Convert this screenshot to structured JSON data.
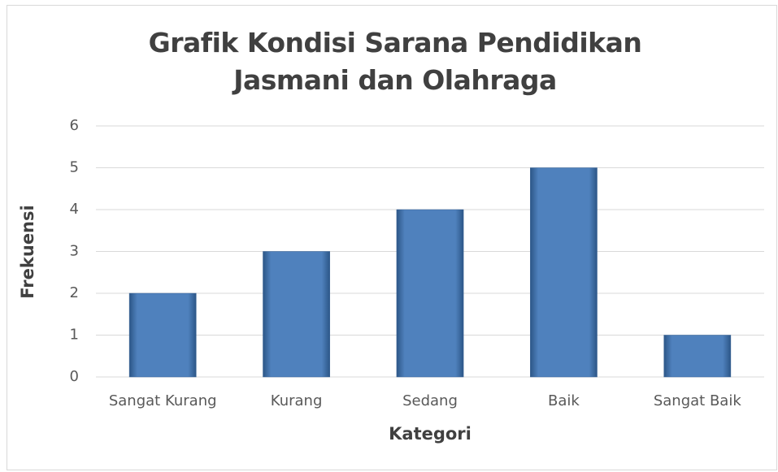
{
  "chart_data": {
    "type": "bar",
    "title": "Grafik Kondisi Sarana Pendidikan Jasmani dan Olahraga",
    "x_label": "Kategori",
    "y_label": "Frekuensi",
    "categories": [
      "Sangat Kurang",
      "Kurang",
      "Sedang",
      "Baik",
      "Sangat Baik"
    ],
    "values": [
      2,
      3,
      4,
      5,
      1
    ],
    "color": "#4f81bd",
    "ylim": [
      0,
      6
    ],
    "yticks": [
      0,
      1,
      2,
      3,
      4,
      5,
      6
    ],
    "grid": true
  }
}
